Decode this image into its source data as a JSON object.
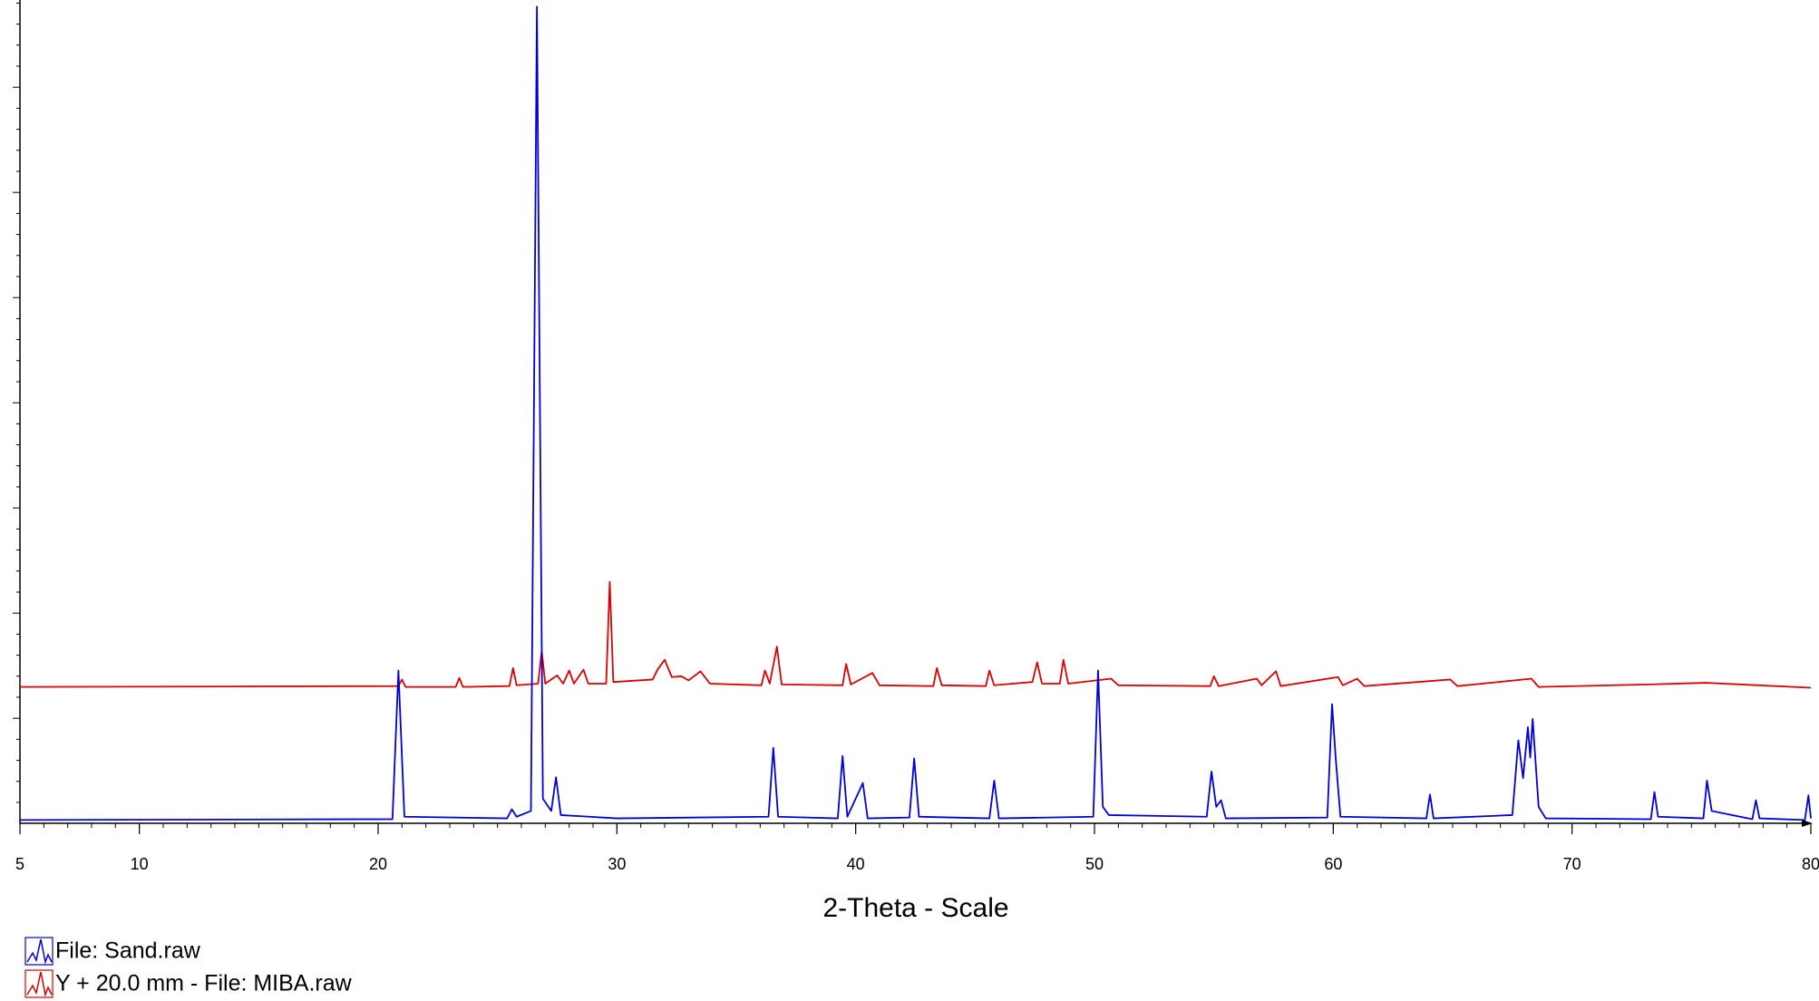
{
  "chart_data": {
    "type": "line",
    "xlabel": "2-Theta - Scale",
    "xlim": [
      5,
      80
    ],
    "xticks": [
      5,
      10,
      20,
      30,
      40,
      50,
      60,
      70,
      80
    ],
    "ylim": [
      0,
      100
    ],
    "legend": "bottom-left",
    "series": [
      {
        "name": "File: Sand.raw",
        "color": "#0000dd",
        "x": [
          5,
          20.6,
          20.85,
          21.1,
          25.4,
          25.6,
          25.8,
          26.4,
          26.65,
          26.9,
          27.25,
          27.45,
          27.65,
          30,
          36.35,
          36.55,
          36.75,
          39.25,
          39.45,
          39.65,
          40.3,
          40.5,
          42.25,
          42.45,
          42.65,
          45.6,
          45.8,
          46.0,
          49.95,
          50.15,
          50.35,
          50.6,
          54.7,
          54.9,
          55.1,
          55.3,
          55.5,
          59.75,
          59.95,
          60.1,
          60.3,
          63.9,
          64.05,
          64.2,
          67.5,
          67.75,
          67.95,
          68.15,
          68.25,
          68.35,
          68.6,
          68.9,
          73.3,
          73.45,
          73.6,
          75.5,
          75.65,
          75.85,
          77.55,
          77.7,
          77.85,
          79.75,
          79.9,
          80
        ],
        "values": [
          0.4,
          0.5,
          18.6,
          0.8,
          0.6,
          1.7,
          0.8,
          1.5,
          99.4,
          3,
          1.5,
          5.6,
          1.0,
          0.6,
          0.8,
          9.2,
          0.8,
          0.6,
          8.2,
          0.8,
          4.9,
          0.6,
          0.7,
          7.9,
          0.8,
          0.6,
          5.2,
          0.6,
          0.8,
          18.6,
          2.0,
          1.0,
          0.8,
          6.3,
          2.0,
          2.8,
          0.6,
          0.7,
          14.5,
          8.0,
          0.8,
          0.6,
          3.5,
          0.6,
          1.0,
          10.1,
          5.5,
          11.7,
          8,
          12.7,
          2,
          0.6,
          0.5,
          3.8,
          0.8,
          0.6,
          5.2,
          1.5,
          0.5,
          2.8,
          0.6,
          0.4,
          3.4,
          0.6
        ]
      },
      {
        "name": "Y + 20.0 mm - File: MIBA.raw",
        "color": "#dd0000",
        "x": [
          5,
          20.85,
          21.0,
          21.15,
          23.25,
          23.4,
          23.55,
          25.5,
          25.65,
          25.8,
          26.7,
          26.85,
          27.0,
          27.5,
          27.75,
          28.0,
          28.2,
          28.6,
          28.8,
          29.55,
          29.7,
          29.85,
          31.5,
          31.7,
          32.0,
          32.3,
          32.7,
          33.0,
          33.5,
          33.9,
          36.05,
          36.2,
          36.4,
          36.7,
          36.9,
          39.45,
          39.6,
          39.8,
          40.7,
          41,
          43.25,
          43.4,
          43.6,
          45.45,
          45.6,
          45.8,
          47.4,
          47.6,
          47.8,
          48.55,
          48.7,
          48.9,
          50.7,
          51,
          54.85,
          55.0,
          55.2,
          56.8,
          57.0,
          57.6,
          57.8,
          60.2,
          60.4,
          61,
          61.3,
          64.9,
          65.2,
          68.3,
          68.6,
          73.2,
          75.6,
          80
        ],
        "values": [
          16.6,
          16.7,
          17.5,
          16.6,
          16.6,
          17.7,
          16.6,
          16.7,
          18.9,
          16.8,
          17,
          21.0,
          17,
          18.0,
          17,
          18.6,
          17,
          18.7,
          17,
          17,
          29.4,
          17.2,
          17.5,
          18.7,
          19.9,
          17.8,
          17.9,
          17.4,
          18.5,
          17,
          16.8,
          18.6,
          17,
          21.5,
          16.9,
          16.8,
          19.4,
          16.9,
          18.3,
          16.8,
          16.7,
          18.9,
          16.8,
          16.7,
          18.6,
          16.8,
          17.2,
          19.6,
          17,
          17.0,
          19.9,
          17,
          17.6,
          16.8,
          16.7,
          17.9,
          16.7,
          17.6,
          16.8,
          18.5,
          16.7,
          17.8,
          16.8,
          17.6,
          16.7,
          17.5,
          16.7,
          17.6,
          16.6,
          16.9,
          17.1,
          16.5
        ]
      }
    ]
  }
}
